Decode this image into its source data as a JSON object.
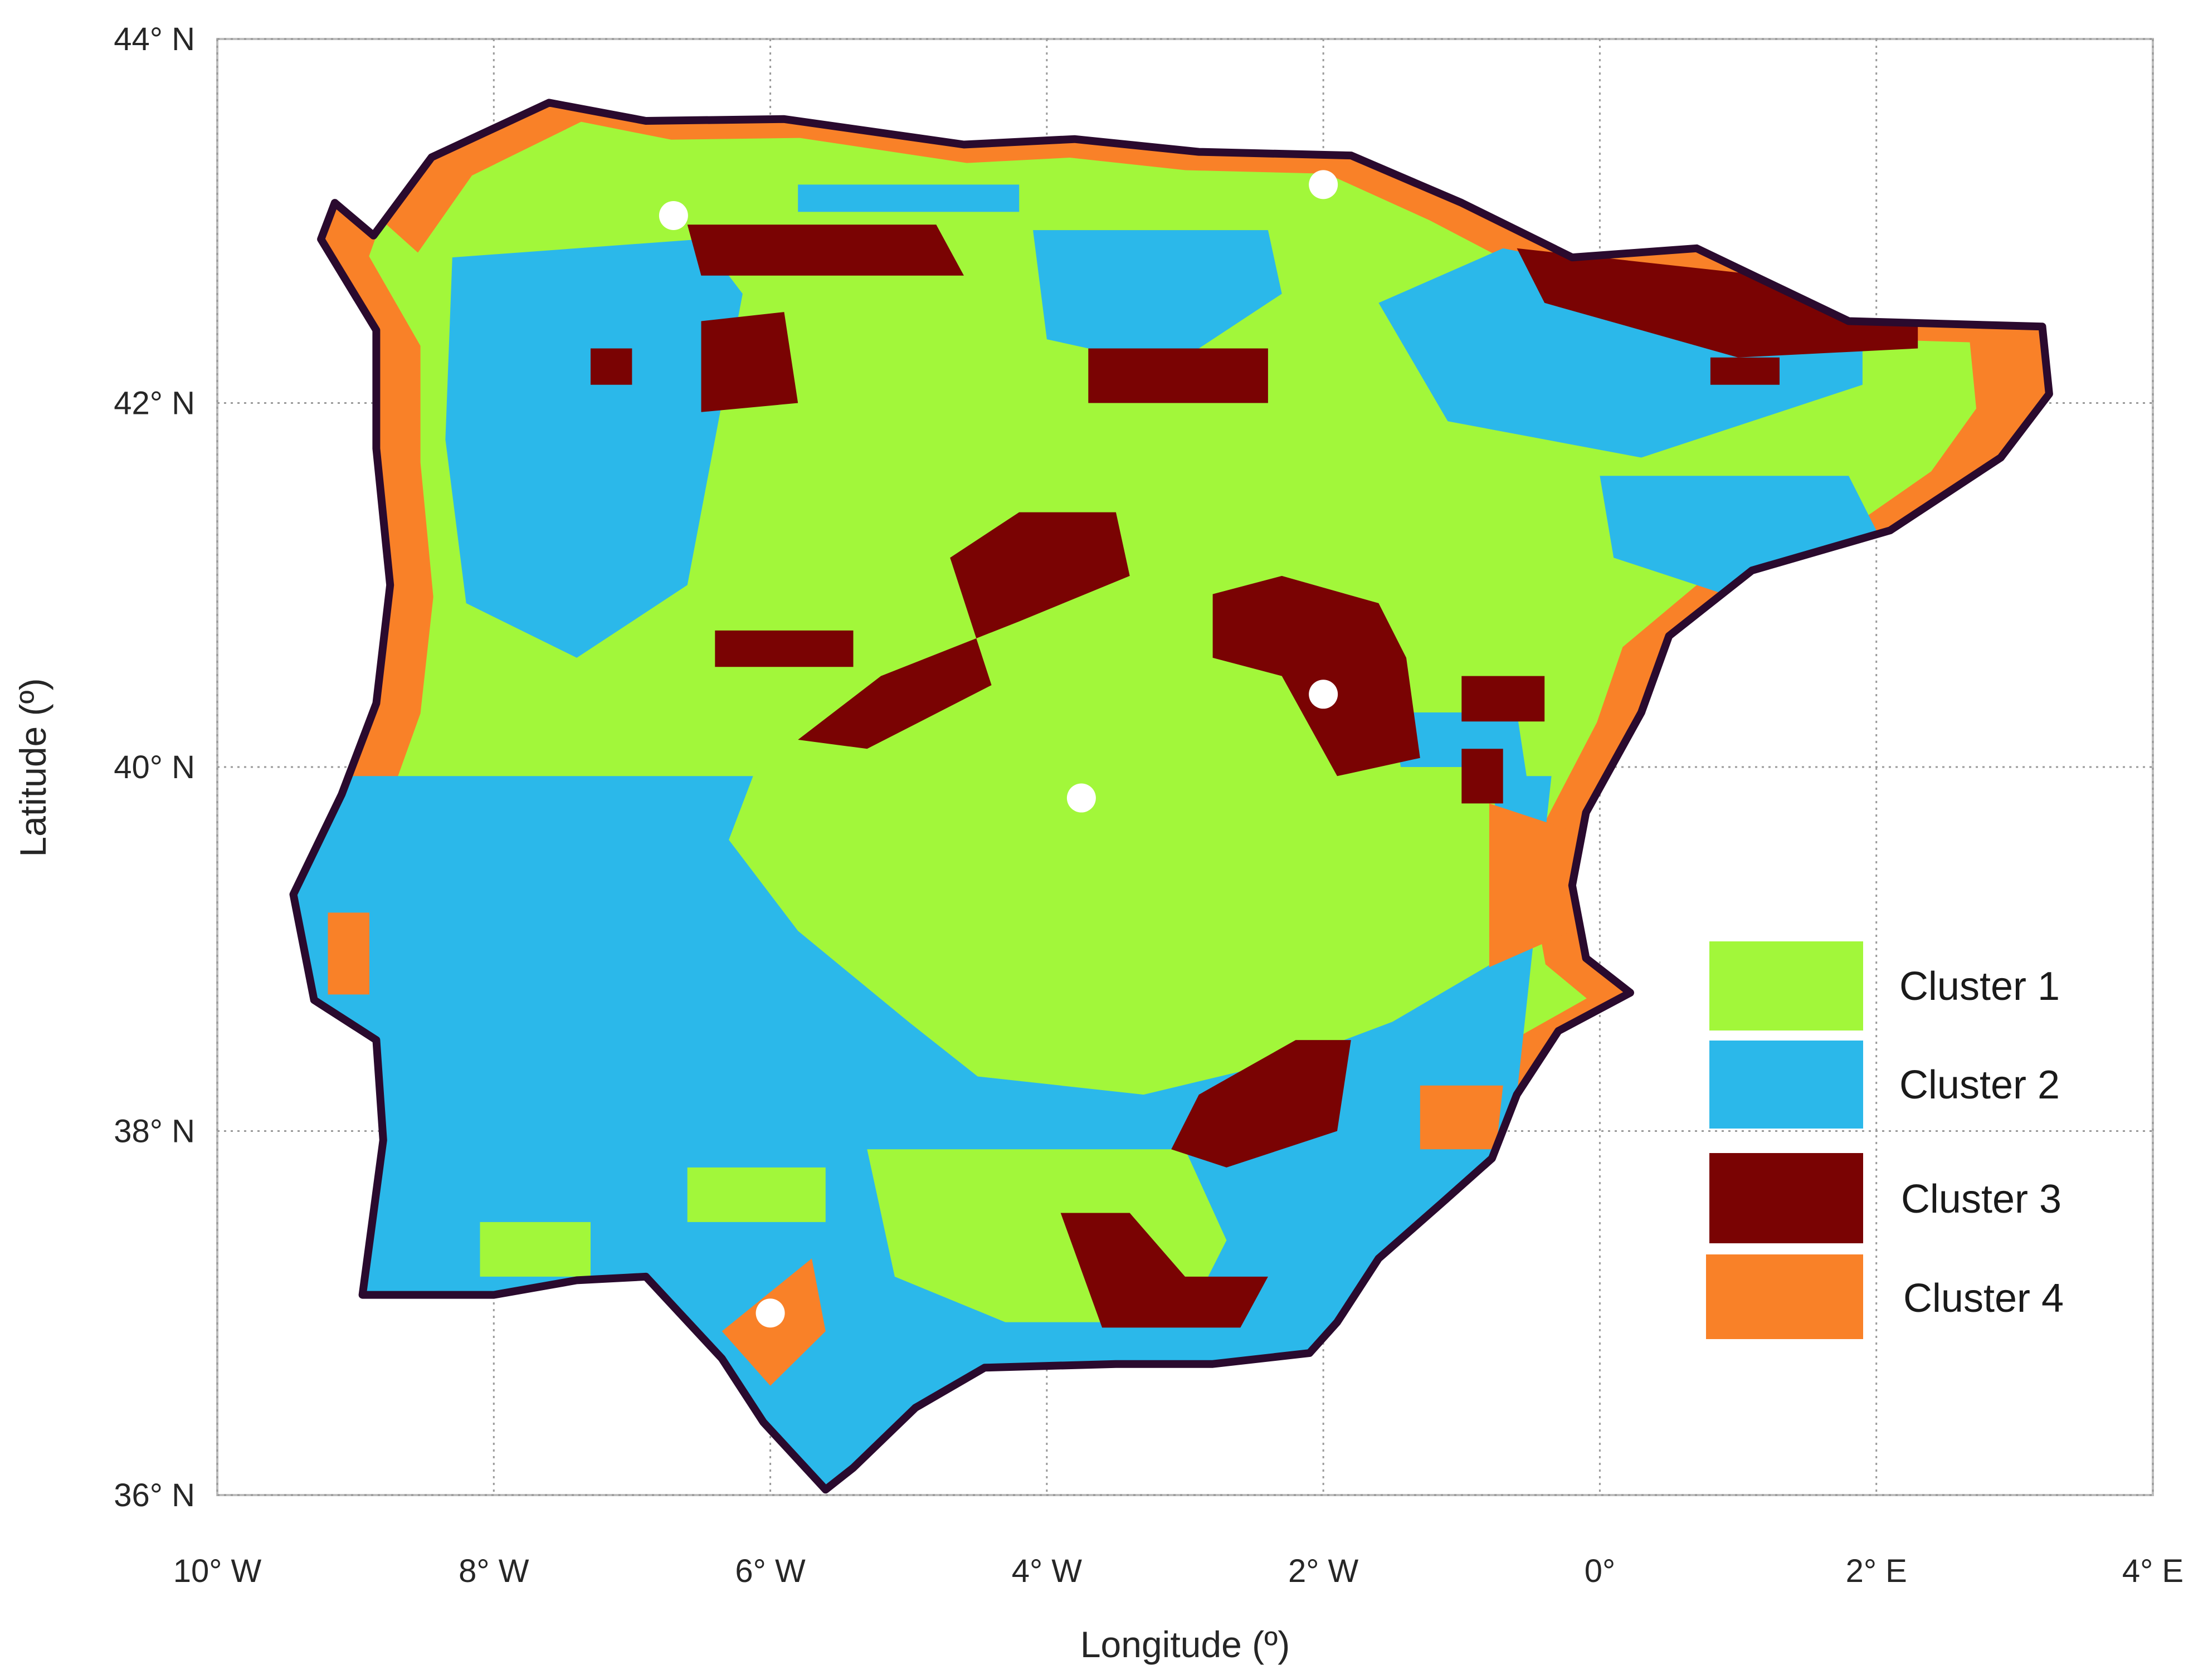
{
  "axes": {
    "xlabel": "Longitude (º)",
    "ylabel": "Latitude (º)",
    "xlim": [
      -10,
      4
    ],
    "ylim": [
      36,
      44
    ],
    "grid": true,
    "x_ticks": [
      {
        "value": -10,
        "label": "10° W"
      },
      {
        "value": -8,
        "label": "8° W"
      },
      {
        "value": -6,
        "label": "6° W"
      },
      {
        "value": -4,
        "label": "4° W"
      },
      {
        "value": -2,
        "label": "2° W"
      },
      {
        "value": 0,
        "label": "0°"
      },
      {
        "value": 2,
        "label": "2° E"
      },
      {
        "value": 4,
        "label": "4° E"
      }
    ],
    "y_ticks": [
      {
        "value": 44,
        "label": "44° N"
      },
      {
        "value": 42,
        "label": "42° N"
      },
      {
        "value": 40,
        "label": "40° N"
      },
      {
        "value": 38,
        "label": "38° N"
      },
      {
        "value": 36,
        "label": "36° N"
      }
    ]
  },
  "legend": {
    "placement": "lower-right",
    "items": [
      {
        "label": "Cluster 1",
        "color": "#A2F73A"
      },
      {
        "label": "Cluster 2",
        "color": "#2BB8EA"
      },
      {
        "label": "Cluster 3",
        "color": "#7A0303"
      },
      {
        "label": "Cluster 4",
        "color": "#F98128"
      }
    ]
  },
  "colors": {
    "coastline": "#2A0A2E",
    "grid": "#9A9A9A",
    "axis_frame": "#BDBDBD",
    "station_marker": "#FFFFFF"
  },
  "map_layers": {
    "coastline": [
      [
        -8.87,
        42.92
      ],
      [
        -8.45,
        43.35
      ],
      [
        -7.6,
        43.65
      ],
      [
        -6.9,
        43.55
      ],
      [
        -5.9,
        43.56
      ],
      [
        -4.6,
        43.42
      ],
      [
        -3.8,
        43.45
      ],
      [
        -2.9,
        43.38
      ],
      [
        -1.8,
        43.36
      ],
      [
        -1.0,
        43.1
      ],
      [
        -0.2,
        42.8
      ],
      [
        0.7,
        42.85
      ],
      [
        1.8,
        42.45
      ],
      [
        3.2,
        42.42
      ],
      [
        3.25,
        42.05
      ],
      [
        2.9,
        41.7
      ],
      [
        2.1,
        41.3
      ],
      [
        1.1,
        41.08
      ],
      [
        0.5,
        40.72
      ],
      [
        0.3,
        40.3
      ],
      [
        -0.1,
        39.75
      ],
      [
        -0.2,
        39.35
      ],
      [
        -0.1,
        38.95
      ],
      [
        0.22,
        38.76
      ],
      [
        -0.3,
        38.55
      ],
      [
        -0.6,
        38.2
      ],
      [
        -0.78,
        37.85
      ],
      [
        -1.15,
        37.6
      ],
      [
        -1.6,
        37.3
      ],
      [
        -1.9,
        36.95
      ],
      [
        -2.1,
        36.78
      ],
      [
        -2.8,
        36.72
      ],
      [
        -3.5,
        36.72
      ],
      [
        -4.45,
        36.7
      ],
      [
        -4.95,
        36.48
      ],
      [
        -5.4,
        36.15
      ],
      [
        -5.6,
        36.03
      ],
      [
        -6.05,
        36.4
      ],
      [
        -6.35,
        36.75
      ],
      [
        -6.9,
        37.2
      ],
      [
        -7.4,
        37.18
      ],
      [
        -8.0,
        37.1
      ],
      [
        -8.65,
        37.1
      ],
      [
        -8.95,
        37.1
      ],
      [
        -8.8,
        37.95
      ],
      [
        -8.85,
        38.5
      ],
      [
        -9.3,
        38.72
      ],
      [
        -9.45,
        39.3
      ],
      [
        -9.1,
        39.85
      ],
      [
        -8.85,
        40.35
      ],
      [
        -8.75,
        41.0
      ],
      [
        -8.85,
        41.75
      ],
      [
        -8.85,
        42.4
      ],
      [
        -9.25,
        42.9
      ],
      [
        -9.15,
        43.1
      ]
    ],
    "cluster2_region": [
      [
        -9.3,
        39.95
      ],
      [
        -0.35,
        39.95
      ],
      [
        -0.6,
        38.2
      ],
      [
        -0.78,
        37.85
      ],
      [
        -1.15,
        37.6
      ],
      [
        -1.6,
        37.3
      ],
      [
        -1.9,
        36.95
      ],
      [
        -2.1,
        36.78
      ],
      [
        -2.8,
        36.72
      ],
      [
        -3.5,
        36.72
      ],
      [
        -4.45,
        36.7
      ],
      [
        -4.95,
        36.48
      ],
      [
        -5.4,
        36.15
      ],
      [
        -5.6,
        36.03
      ],
      [
        -6.05,
        36.4
      ],
      [
        -6.35,
        36.75
      ],
      [
        -6.9,
        37.2
      ],
      [
        -7.4,
        37.18
      ],
      [
        -8.0,
        37.1
      ],
      [
        -8.65,
        37.1
      ],
      [
        -8.95,
        37.1
      ],
      [
        -8.8,
        37.95
      ],
      [
        -8.85,
        38.5
      ],
      [
        -9.3,
        38.72
      ],
      [
        -9.45,
        39.3
      ]
    ],
    "cluster1_patches": [
      [
        [
          -6.1,
          40.0
        ],
        [
          -0.8,
          40.0
        ],
        [
          -0.6,
          39.0
        ],
        [
          -1.5,
          38.6
        ],
        [
          -2.2,
          38.4
        ],
        [
          -3.3,
          38.2
        ],
        [
          -4.5,
          38.3
        ],
        [
          -5.0,
          38.6
        ],
        [
          -5.8,
          39.1
        ],
        [
          -6.3,
          39.6
        ]
      ],
      [
        [
          -5.3,
          37.9
        ],
        [
          -3.0,
          37.9
        ],
        [
          -2.7,
          37.4
        ],
        [
          -3.0,
          36.95
        ],
        [
          -4.3,
          36.95
        ],
        [
          -5.1,
          37.2
        ]
      ],
      [
        [
          -6.6,
          37.8
        ],
        [
          -5.6,
          37.8
        ],
        [
          -5.6,
          37.5
        ],
        [
          -6.6,
          37.5
        ]
      ],
      [
        [
          -8.1,
          37.5
        ],
        [
          -7.3,
          37.5
        ],
        [
          -7.3,
          37.2
        ],
        [
          -8.1,
          37.2
        ]
      ]
    ],
    "cluster2_north_patches": [
      [
        [
          -8.3,
          42.8
        ],
        [
          -6.5,
          42.9
        ],
        [
          -6.2,
          42.6
        ],
        [
          -6.6,
          41.0
        ],
        [
          -7.4,
          40.6
        ],
        [
          -8.2,
          40.9
        ],
        [
          -8.35,
          41.8
        ]
      ],
      [
        [
          -4.1,
          42.95
        ],
        [
          -2.4,
          42.95
        ],
        [
          -2.3,
          42.6
        ],
        [
          -3.1,
          42.2
        ],
        [
          -4.0,
          42.35
        ]
      ],
      [
        [
          -1.6,
          42.55
        ],
        [
          -0.7,
          42.85
        ],
        [
          1.9,
          42.45
        ],
        [
          1.9,
          42.1
        ],
        [
          0.3,
          41.7
        ],
        [
          -1.1,
          41.9
        ]
      ],
      [
        [
          0.0,
          41.6
        ],
        [
          1.8,
          41.6
        ],
        [
          2.0,
          41.3
        ],
        [
          0.9,
          40.95
        ],
        [
          0.1,
          41.15
        ]
      ],
      [
        [
          -1.5,
          40.3
        ],
        [
          -0.6,
          40.3
        ],
        [
          -0.5,
          39.8
        ],
        [
          -1.4,
          39.8
        ]
      ],
      [
        [
          -5.8,
          43.2
        ],
        [
          -4.2,
          43.2
        ],
        [
          -4.2,
          43.05
        ],
        [
          -5.8,
          43.05
        ]
      ]
    ],
    "cluster4_patches": [
      [
        [
          -0.8,
          39.8
        ],
        [
          -0.2,
          39.65
        ],
        [
          -0.2,
          39.1
        ],
        [
          -0.8,
          38.9
        ]
      ],
      [
        [
          -1.3,
          38.25
        ],
        [
          -0.7,
          38.25
        ],
        [
          -0.75,
          37.9
        ],
        [
          -1.3,
          37.9
        ]
      ],
      [
        [
          -6.35,
          36.9
        ],
        [
          -5.7,
          37.3
        ],
        [
          -5.6,
          36.9
        ],
        [
          -6.0,
          36.6
        ]
      ],
      [
        [
          -9.2,
          39.2
        ],
        [
          -8.9,
          39.2
        ],
        [
          -8.9,
          38.75
        ],
        [
          -9.2,
          38.75
        ]
      ]
    ],
    "cluster3_patches": [
      [
        [
          -6.6,
          42.98
        ],
        [
          -4.8,
          42.98
        ],
        [
          -4.6,
          42.7
        ],
        [
          -6.5,
          42.7
        ]
      ],
      [
        [
          -6.5,
          42.45
        ],
        [
          -5.9,
          42.5
        ],
        [
          -5.8,
          42.0
        ],
        [
          -6.5,
          41.95
        ]
      ],
      [
        [
          -4.7,
          41.15
        ],
        [
          -4.2,
          41.4
        ],
        [
          -3.5,
          41.4
        ],
        [
          -3.4,
          41.05
        ],
        [
          -4.2,
          40.8
        ],
        [
          -5.2,
          40.5
        ],
        [
          -5.8,
          40.15
        ],
        [
          -5.3,
          40.1
        ],
        [
          -4.4,
          40.45
        ]
      ],
      [
        [
          -6.4,
          40.75
        ],
        [
          -5.4,
          40.75
        ],
        [
          -5.4,
          40.55
        ],
        [
          -6.4,
          40.55
        ]
      ],
      [
        [
          -2.8,
          40.95
        ],
        [
          -2.3,
          41.05
        ],
        [
          -1.6,
          40.9
        ],
        [
          -1.4,
          40.6
        ],
        [
          -1.3,
          40.05
        ],
        [
          -1.9,
          39.95
        ],
        [
          -2.3,
          40.5
        ],
        [
          -2.8,
          40.6
        ]
      ],
      [
        [
          -1.0,
          40.5
        ],
        [
          -0.4,
          40.5
        ],
        [
          -0.4,
          40.25
        ],
        [
          -1.0,
          40.25
        ]
      ],
      [
        [
          -1.0,
          40.1
        ],
        [
          -0.7,
          40.1
        ],
        [
          -0.7,
          39.8
        ],
        [
          -1.0,
          39.8
        ]
      ],
      [
        [
          -3.7,
          42.3
        ],
        [
          -2.4,
          42.3
        ],
        [
          -2.4,
          42.0
        ],
        [
          -3.7,
          42.0
        ]
      ],
      [
        [
          -2.2,
          38.5
        ],
        [
          -1.8,
          38.5
        ],
        [
          -1.9,
          38.0
        ],
        [
          -2.7,
          37.8
        ],
        [
          -3.1,
          37.9
        ],
        [
          -2.9,
          38.2
        ]
      ],
      [
        [
          -3.9,
          37.55
        ],
        [
          -3.4,
          37.55
        ],
        [
          -3.0,
          37.2
        ],
        [
          -2.4,
          37.2
        ],
        [
          -2.6,
          36.92
        ],
        [
          -3.6,
          36.92
        ]
      ],
      [
        [
          -0.6,
          42.85
        ],
        [
          1.2,
          42.7
        ],
        [
          2.3,
          42.65
        ],
        [
          2.3,
          42.3
        ],
        [
          1.0,
          42.25
        ],
        [
          -0.4,
          42.55
        ]
      ],
      [
        [
          0.8,
          42.25
        ],
        [
          1.3,
          42.25
        ],
        [
          1.3,
          42.1
        ],
        [
          0.8,
          42.1
        ]
      ],
      [
        [
          -7.3,
          42.3
        ],
        [
          -7.0,
          42.3
        ],
        [
          -7.0,
          42.1
        ],
        [
          -7.3,
          42.1
        ]
      ]
    ],
    "station_markers": [
      {
        "lon": -6.7,
        "lat": 43.03
      },
      {
        "lon": -2.0,
        "lat": 43.2
      },
      {
        "lon": -2.0,
        "lat": 40.4
      },
      {
        "lon": -3.75,
        "lat": 39.83
      },
      {
        "lon": -6.0,
        "lat": 37.0
      }
    ]
  }
}
